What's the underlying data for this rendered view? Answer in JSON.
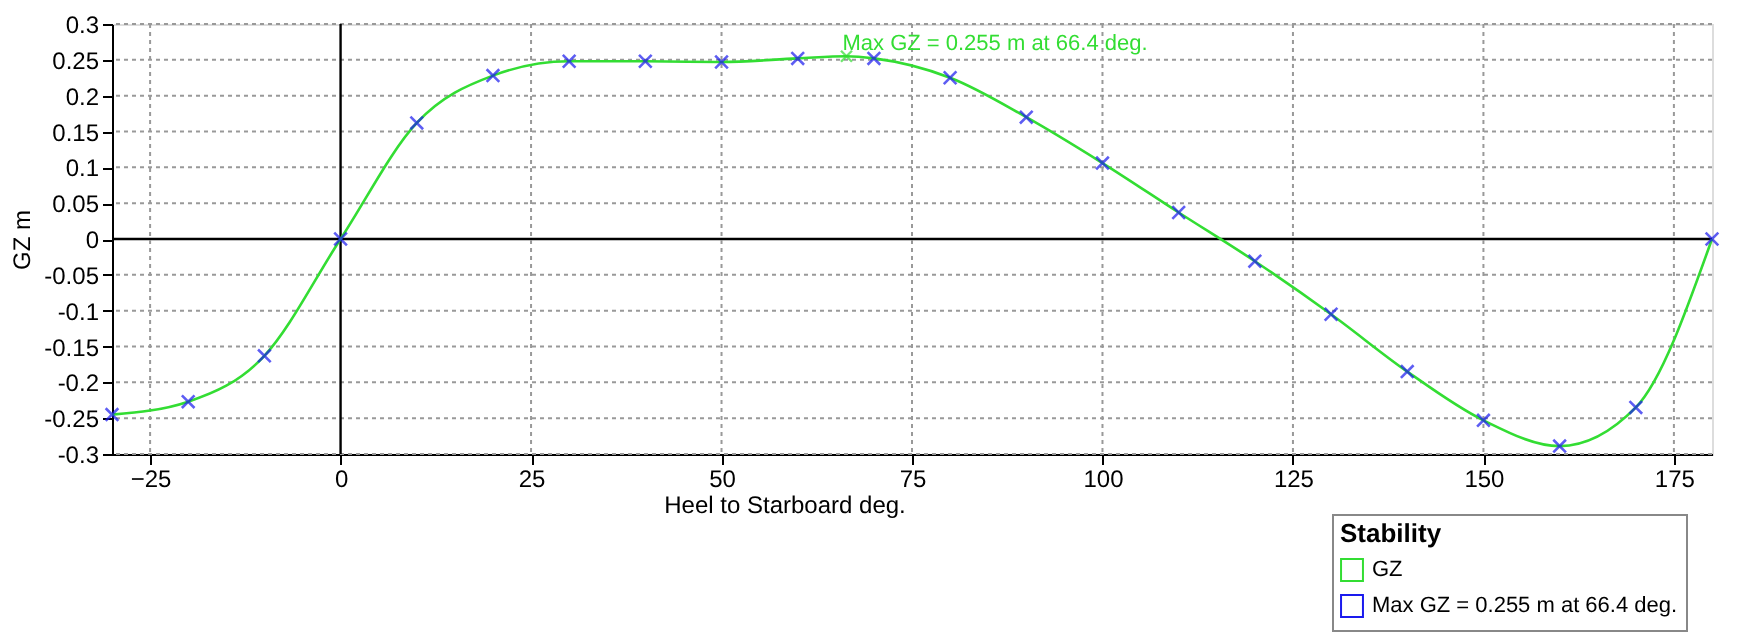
{
  "chart_data": {
    "type": "line",
    "xlabel": "Heel to Starboard   deg.",
    "ylabel": "GZ   m",
    "legend_title": "Stability",
    "xlim": [
      -30,
      180
    ],
    "xticks": [
      -25,
      0,
      25,
      50,
      75,
      100,
      125,
      150,
      175
    ],
    "ylim": [
      -0.3,
      0.3
    ],
    "yticks": [
      -0.3,
      -0.25,
      -0.2,
      -0.15,
      -0.1,
      -0.05,
      0,
      0.05,
      0.1,
      0.15,
      0.2,
      0.25,
      0.3
    ],
    "grid": true,
    "legend": "bottom right",
    "series": [
      {
        "name": "GZ",
        "color": "#33dd33",
        "marker": "none",
        "line_style": "solid",
        "x": [
          -30,
          -20,
          -10,
          0,
          10,
          20,
          30,
          40,
          50,
          60,
          66.4,
          70,
          80,
          90,
          100,
          110,
          120,
          130,
          140,
          150,
          160,
          170,
          180
        ],
        "values": [
          -0.245,
          -0.227,
          -0.163,
          0,
          0.162,
          0.228,
          0.248,
          0.248,
          0.247,
          0.252,
          0.255,
          0.252,
          0.225,
          0.17,
          0.106,
          0.037,
          -0.031,
          -0.105,
          -0.185,
          -0.253,
          -0.289,
          -0.235,
          0
        ]
      },
      {
        "name": "Max GZ = 0.255 m at 66.4 deg.",
        "type": "scatter",
        "color": "#1a1aee",
        "marker": "cross",
        "x": [
          -30,
          -20,
          -10,
          0,
          10,
          20,
          30,
          40,
          50,
          60,
          70,
          80,
          90,
          100,
          110,
          120,
          130,
          140,
          150,
          160,
          170,
          180
        ],
        "values": [
          -0.245,
          -0.227,
          -0.163,
          0,
          0.162,
          0.228,
          0.248,
          0.248,
          0.247,
          0.252,
          0.252,
          0.225,
          0.17,
          0.106,
          0.037,
          -0.031,
          -0.105,
          -0.185,
          -0.253,
          -0.289,
          -0.235,
          0
        ]
      }
    ],
    "annotations": [
      {
        "text": "Max GZ = 0.255 m at 66.4 deg.",
        "x": 66.4,
        "y": 0.255
      }
    ]
  }
}
